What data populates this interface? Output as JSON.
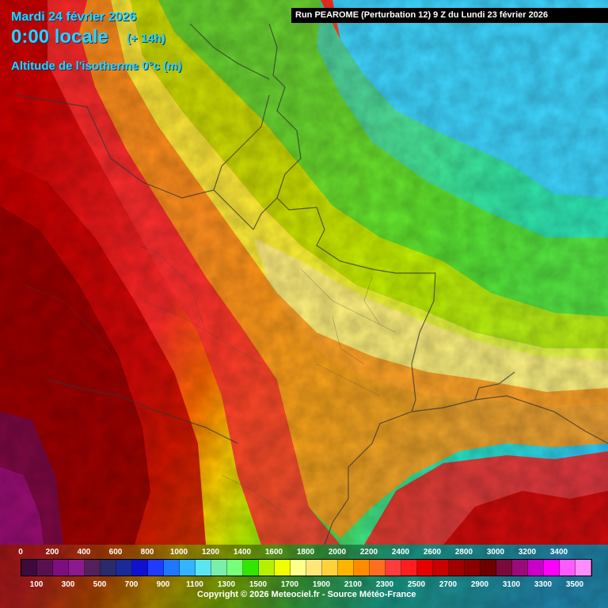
{
  "header": {
    "date": "Mardi 24 février 2026",
    "hour": "0:00 locale",
    "offset": "(+ 14h)",
    "parameter": "Altitude de l'isotherme 0°c (m)",
    "run": "Run PEAROME (Perturbation 12) 9 Z du Lundi 23 février 2026"
  },
  "legend": {
    "labels_top": [
      "0",
      "200",
      "400",
      "600",
      "800",
      "1000",
      "1200",
      "1400",
      "1600",
      "1800",
      "2000",
      "2200",
      "2400",
      "2600",
      "2800",
      "3000",
      "3200",
      "3400"
    ],
    "labels_bottom": [
      "100",
      "300",
      "500",
      "700",
      "900",
      "1100",
      "1300",
      "1500",
      "1700",
      "1900",
      "2100",
      "2300",
      "2500",
      "2700",
      "2900",
      "3100",
      "3300",
      "3500"
    ],
    "colors": [
      "#3c0a3c",
      "#5a1050",
      "#800d80",
      "#8c1a8c",
      "#52205a",
      "#2a2a6e",
      "#1a2a9a",
      "#1010d2",
      "#1e3cff",
      "#1e78ff",
      "#32b4ff",
      "#5ae6f0",
      "#78f0aa",
      "#78ff78",
      "#32e600",
      "#b4f000",
      "#f0ff00",
      "#ffff8c",
      "#ffe678",
      "#ffd23c",
      "#ffb400",
      "#ff8c00",
      "#ff6e1e",
      "#ff3c3c",
      "#ff1e1e",
      "#e60000",
      "#c80000",
      "#a00000",
      "#8c0000",
      "#6e0000",
      "#7a0a3c",
      "#9a0a7a",
      "#c800c8",
      "#ff00ff",
      "#ff5aff",
      "#ff8cff"
    ]
  },
  "copyright": "Copyright © 2026 Meteociel.fr - Source Météo-France"
}
